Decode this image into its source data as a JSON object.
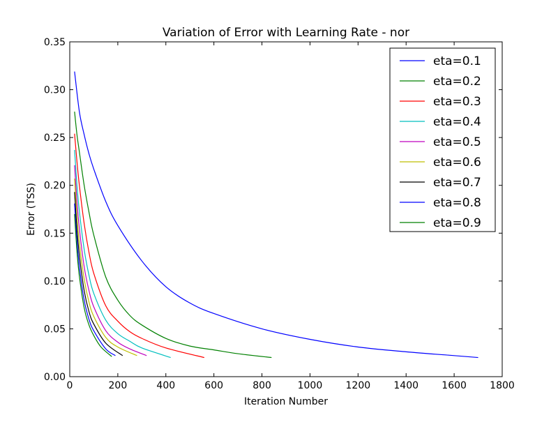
{
  "chart_data": {
    "type": "line",
    "title": "Variation of Error with Learning Rate - nor",
    "xlabel": "Iteration Number",
    "ylabel": "Error (TSS)",
    "xlim": [
      0,
      1800
    ],
    "ylim": [
      0.0,
      0.35
    ],
    "xticks": [
      0,
      200,
      400,
      600,
      800,
      1000,
      1200,
      1400,
      1600,
      1800
    ],
    "xtick_labels": [
      "0",
      "200",
      "400",
      "600",
      "800",
      "1000",
      "1200",
      "1400",
      "1600",
      "1800"
    ],
    "yticks": [
      0.0,
      0.05,
      0.1,
      0.15,
      0.2,
      0.25,
      0.3,
      0.35
    ],
    "ytick_labels": [
      "0.00",
      "0.05",
      "0.10",
      "0.15",
      "0.20",
      "0.25",
      "0.30",
      "0.35"
    ],
    "grid": false,
    "legend_position": "top-right",
    "series": [
      {
        "name": "eta=0.1",
        "color": "#0000ff",
        "x": [
          20,
          40,
          60,
          80,
          100,
          150,
          200,
          300,
          400,
          500,
          600,
          800,
          1000,
          1200,
          1400,
          1600,
          1700
        ],
        "y": [
          0.319,
          0.277,
          0.253,
          0.233,
          0.217,
          0.183,
          0.158,
          0.121,
          0.094,
          0.077,
          0.066,
          0.05,
          0.039,
          0.031,
          0.026,
          0.022,
          0.02
        ]
      },
      {
        "name": "eta=0.2",
        "color": "#008000",
        "x": [
          20,
          30,
          40,
          60,
          80,
          100,
          150,
          200,
          250,
          300,
          400,
          500,
          600,
          700,
          840
        ],
        "y": [
          0.277,
          0.253,
          0.235,
          0.2,
          0.172,
          0.148,
          0.104,
          0.08,
          0.064,
          0.054,
          0.04,
          0.032,
          0.028,
          0.024,
          0.02
        ]
      },
      {
        "name": "eta=0.3",
        "color": "#ff0000",
        "x": [
          20,
          30,
          40,
          60,
          80,
          100,
          150,
          200,
          250,
          300,
          400,
          560
        ],
        "y": [
          0.254,
          0.225,
          0.2,
          0.16,
          0.13,
          0.108,
          0.074,
          0.058,
          0.047,
          0.04,
          0.03,
          0.02
        ]
      },
      {
        "name": "eta=0.4",
        "color": "#00bfbf",
        "x": [
          20,
          30,
          40,
          60,
          80,
          100,
          150,
          200,
          250,
          300,
          420
        ],
        "y": [
          0.237,
          0.2,
          0.173,
          0.133,
          0.106,
          0.087,
          0.059,
          0.045,
          0.037,
          0.03,
          0.02
        ]
      },
      {
        "name": "eta=0.5",
        "color": "#bf00bf",
        "x": [
          20,
          30,
          40,
          60,
          80,
          100,
          150,
          200,
          250,
          320
        ],
        "y": [
          0.221,
          0.183,
          0.155,
          0.115,
          0.09,
          0.073,
          0.048,
          0.036,
          0.029,
          0.022
        ]
      },
      {
        "name": "eta=0.6",
        "color": "#bfbf00",
        "x": [
          20,
          30,
          40,
          60,
          80,
          100,
          150,
          200,
          280
        ],
        "y": [
          0.207,
          0.168,
          0.14,
          0.102,
          0.078,
          0.063,
          0.041,
          0.031,
          0.022
        ]
      },
      {
        "name": "eta=0.7",
        "color": "#000000",
        "x": [
          20,
          30,
          40,
          60,
          80,
          100,
          150,
          220
        ],
        "y": [
          0.193,
          0.154,
          0.127,
          0.09,
          0.068,
          0.055,
          0.035,
          0.022
        ]
      },
      {
        "name": "eta=0.8",
        "color": "#0000ff",
        "x": [
          20,
          30,
          40,
          60,
          80,
          100,
          150,
          190
        ],
        "y": [
          0.181,
          0.142,
          0.115,
          0.08,
          0.06,
          0.048,
          0.029,
          0.022
        ]
      },
      {
        "name": "eta=0.9",
        "color": "#008000",
        "x": [
          20,
          30,
          40,
          60,
          80,
          100,
          130,
          175
        ],
        "y": [
          0.17,
          0.131,
          0.105,
          0.072,
          0.054,
          0.043,
          0.031,
          0.021
        ]
      }
    ]
  }
}
